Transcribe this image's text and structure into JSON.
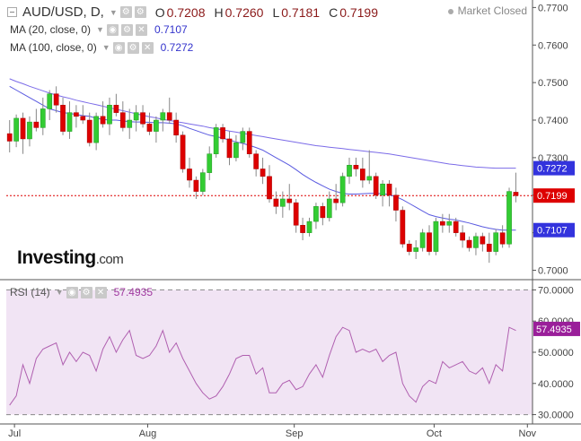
{
  "header": {
    "symbol": "AUD/USD, D,",
    "o_label": "O",
    "o_value": "0.7208",
    "h_label": "H",
    "h_value": "0.7260",
    "l_label": "L",
    "l_value": "0.7181",
    "c_label": "C",
    "c_value": "0.7199",
    "status": "Market Closed"
  },
  "ma20": {
    "label": "MA (20, close, 0)",
    "value": "0.7107",
    "color": "#3333cc"
  },
  "ma100": {
    "label": "MA (100, close, 0)",
    "value": "0.7272",
    "color": "#3333cc"
  },
  "rsi": {
    "label": "RSI (14)",
    "value": "57.4935",
    "color": "#a13aa1"
  },
  "logo": {
    "brand": "Investing",
    "suffix": ".com"
  },
  "colors": {
    "up": "#33cc33",
    "down": "#dd0000",
    "ma20": "#5a5ae0",
    "ma100": "#7b6be8",
    "rsi": "#b060b0",
    "rsi_band": "#f1e4f4",
    "price_tag": "#dd0000",
    "ma_tag": "#3333dd"
  },
  "chart_data": [
    {
      "type": "candlestick",
      "title": "AUD/USD, D,",
      "ylim": [
        0.6975,
        0.772
      ],
      "yticks": [
        "0.7700",
        "0.7600",
        "0.7500",
        "0.7400",
        "0.7300",
        "0.7200",
        "0.7100",
        "0.7000"
      ],
      "xticks": [
        "Jul",
        "Aug",
        "Sep",
        "Oct",
        "Nov"
      ],
      "last_price": 0.7199,
      "candles": [
        [
          0.7364,
          0.74,
          0.7314,
          0.7344
        ],
        [
          0.7344,
          0.7415,
          0.7328,
          0.7405
        ],
        [
          0.7405,
          0.742,
          0.731,
          0.735
        ],
        [
          0.735,
          0.741,
          0.733,
          0.7395
        ],
        [
          0.7395,
          0.743,
          0.737,
          0.738
        ],
        [
          0.738,
          0.746,
          0.736,
          0.743
        ],
        [
          0.743,
          0.748,
          0.74,
          0.747
        ],
        [
          0.747,
          0.749,
          0.742,
          0.744
        ],
        [
          0.744,
          0.746,
          0.736,
          0.737
        ],
        [
          0.737,
          0.745,
          0.735,
          0.742
        ],
        [
          0.742,
          0.744,
          0.738,
          0.741
        ],
        [
          0.741,
          0.744,
          0.739,
          0.74
        ],
        [
          0.74,
          0.742,
          0.733,
          0.734
        ],
        [
          0.734,
          0.742,
          0.732,
          0.741
        ],
        [
          0.741,
          0.745,
          0.738,
          0.739
        ],
        [
          0.739,
          0.746,
          0.736,
          0.744
        ],
        [
          0.744,
          0.747,
          0.741,
          0.742
        ],
        [
          0.742,
          0.745,
          0.737,
          0.738
        ],
        [
          0.738,
          0.743,
          0.735,
          0.74
        ],
        [
          0.74,
          0.744,
          0.737,
          0.742
        ],
        [
          0.742,
          0.744,
          0.738,
          0.739
        ],
        [
          0.739,
          0.742,
          0.736,
          0.737
        ],
        [
          0.737,
          0.741,
          0.734,
          0.74
        ],
        [
          0.74,
          0.743,
          0.737,
          0.742
        ],
        [
          0.742,
          0.746,
          0.739,
          0.74
        ],
        [
          0.74,
          0.742,
          0.734,
          0.736
        ],
        [
          0.736,
          0.737,
          0.726,
          0.727
        ],
        [
          0.727,
          0.73,
          0.722,
          0.724
        ],
        [
          0.724,
          0.725,
          0.719,
          0.721
        ],
        [
          0.721,
          0.727,
          0.72,
          0.726
        ],
        [
          0.726,
          0.733,
          0.724,
          0.731
        ],
        [
          0.731,
          0.739,
          0.73,
          0.738
        ],
        [
          0.738,
          0.739,
          0.734,
          0.735
        ],
        [
          0.735,
          0.737,
          0.728,
          0.73
        ],
        [
          0.73,
          0.736,
          0.729,
          0.734
        ],
        [
          0.734,
          0.738,
          0.732,
          0.737
        ],
        [
          0.737,
          0.738,
          0.73,
          0.731
        ],
        [
          0.731,
          0.732,
          0.725,
          0.727
        ],
        [
          0.727,
          0.73,
          0.723,
          0.725
        ],
        [
          0.725,
          0.728,
          0.718,
          0.719
        ],
        [
          0.719,
          0.721,
          0.715,
          0.717
        ],
        [
          0.717,
          0.721,
          0.714,
          0.719
        ],
        [
          0.719,
          0.723,
          0.716,
          0.718
        ],
        [
          0.718,
          0.719,
          0.71,
          0.712
        ],
        [
          0.712,
          0.714,
          0.708,
          0.71
        ],
        [
          0.71,
          0.714,
          0.709,
          0.713
        ],
        [
          0.713,
          0.718,
          0.711,
          0.717
        ],
        [
          0.717,
          0.718,
          0.712,
          0.714
        ],
        [
          0.714,
          0.721,
          0.713,
          0.719
        ],
        [
          0.719,
          0.723,
          0.716,
          0.718
        ],
        [
          0.718,
          0.726,
          0.717,
          0.725
        ],
        [
          0.725,
          0.73,
          0.723,
          0.728
        ],
        [
          0.728,
          0.73,
          0.725,
          0.727
        ],
        [
          0.727,
          0.73,
          0.722,
          0.724
        ],
        [
          0.724,
          0.732,
          0.723,
          0.725
        ],
        [
          0.725,
          0.726,
          0.719,
          0.72
        ],
        [
          0.72,
          0.724,
          0.717,
          0.723
        ],
        [
          0.723,
          0.724,
          0.717,
          0.72
        ],
        [
          0.72,
          0.722,
          0.713,
          0.716
        ],
        [
          0.716,
          0.717,
          0.706,
          0.707
        ],
        [
          0.707,
          0.708,
          0.704,
          0.705
        ],
        [
          0.705,
          0.708,
          0.703,
          0.706
        ],
        [
          0.706,
          0.711,
          0.705,
          0.71
        ],
        [
          0.71,
          0.712,
          0.704,
          0.705
        ],
        [
          0.705,
          0.714,
          0.704,
          0.713
        ],
        [
          0.713,
          0.715,
          0.71,
          0.712
        ],
        [
          0.712,
          0.715,
          0.71,
          0.713
        ],
        [
          0.713,
          0.714,
          0.709,
          0.71
        ],
        [
          0.71,
          0.712,
          0.706,
          0.708
        ],
        [
          0.708,
          0.709,
          0.705,
          0.706
        ],
        [
          0.706,
          0.71,
          0.704,
          0.709
        ],
        [
          0.709,
          0.71,
          0.705,
          0.707
        ],
        [
          0.707,
          0.71,
          0.702,
          0.705
        ],
        [
          0.705,
          0.711,
          0.704,
          0.71
        ],
        [
          0.71,
          0.712,
          0.706,
          0.707
        ],
        [
          0.707,
          0.722,
          0.706,
          0.721
        ],
        [
          0.7208,
          0.726,
          0.7181,
          0.7199
        ]
      ],
      "ma20": [
        0.749,
        0.748,
        0.747,
        0.746,
        0.745,
        0.744,
        0.743,
        0.7425,
        0.742,
        0.7418,
        0.7415,
        0.7412,
        0.741,
        0.7405,
        0.7402,
        0.74,
        0.74,
        0.7398,
        0.7396,
        0.7395,
        0.7395,
        0.7394,
        0.7393,
        0.7393,
        0.7392,
        0.739,
        0.7385,
        0.7378,
        0.7372,
        0.7366,
        0.736,
        0.7356,
        0.7352,
        0.7347,
        0.7342,
        0.7338,
        0.7333,
        0.7327,
        0.732,
        0.731,
        0.73,
        0.729,
        0.728,
        0.7268,
        0.7255,
        0.7244,
        0.7234,
        0.7225,
        0.7216,
        0.721,
        0.7205,
        0.7203,
        0.7203,
        0.7204,
        0.7205,
        0.7205,
        0.7204,
        0.7201,
        0.7196,
        0.7188,
        0.7178,
        0.7168,
        0.7158,
        0.7148,
        0.7143,
        0.7139,
        0.7136,
        0.7134,
        0.713,
        0.7126,
        0.7121,
        0.7116,
        0.7112,
        0.7109,
        0.7107,
        0.7107,
        0.7107
      ],
      "ma100": [
        0.751,
        0.7503,
        0.7497,
        0.749,
        0.7484,
        0.7478,
        0.7472,
        0.7467,
        0.7462,
        0.7458,
        0.7453,
        0.7449,
        0.7445,
        0.7441,
        0.7437,
        0.7433,
        0.7429,
        0.7425,
        0.7421,
        0.7417,
        0.7413,
        0.7409,
        0.7406,
        0.7402,
        0.7399,
        0.7396,
        0.7393,
        0.739,
        0.7387,
        0.7384,
        0.738,
        0.7377,
        0.7374,
        0.7371,
        0.7368,
        0.7365,
        0.7362,
        0.7359,
        0.7356,
        0.7353,
        0.735,
        0.7347,
        0.7344,
        0.7341,
        0.7338,
        0.7335,
        0.7332,
        0.733,
        0.7328,
        0.7326,
        0.7324,
        0.7322,
        0.732,
        0.7318,
        0.7316,
        0.7314,
        0.7312,
        0.731,
        0.7307,
        0.7304,
        0.7301,
        0.7298,
        0.7295,
        0.7292,
        0.7289,
        0.7286,
        0.7283,
        0.7281,
        0.7279,
        0.7277,
        0.7275,
        0.7274,
        0.7273,
        0.7272,
        0.7272,
        0.7272,
        0.7272
      ]
    },
    {
      "type": "line",
      "title": "RSI (14)",
      "ylim": [
        27,
        73
      ],
      "yticks": [
        "70.0000",
        "60.0000",
        "50.0000",
        "40.0000",
        "30.0000"
      ],
      "overbought": 70,
      "oversold": 30,
      "values": [
        33,
        36,
        46,
        40,
        48,
        51,
        52,
        53,
        46,
        50,
        47,
        50,
        49,
        44,
        51,
        55,
        50,
        54,
        57,
        49,
        48,
        49,
        52,
        57,
        50,
        53,
        48,
        44,
        40,
        37,
        35,
        36,
        39,
        43,
        48,
        49,
        49,
        43,
        45,
        37,
        37,
        40,
        41,
        38,
        39,
        43,
        46,
        42,
        49,
        55,
        58,
        57,
        50,
        51,
        50,
        51,
        47,
        49,
        50,
        40,
        36,
        34,
        39,
        41,
        40,
        47,
        45,
        46,
        47,
        44,
        43,
        45,
        40,
        46,
        44,
        58,
        57
      ]
    }
  ]
}
